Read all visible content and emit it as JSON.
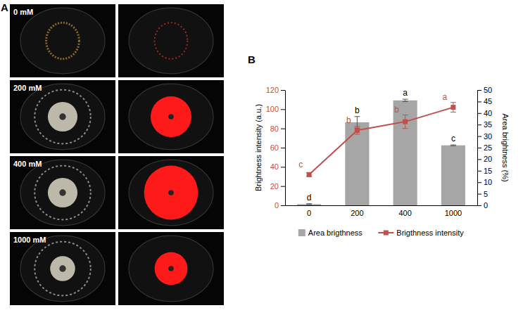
{
  "figure": {
    "panel_a": {
      "letter": "A",
      "labels": [
        "0 mM",
        "200 mM",
        "400 mM",
        "1000 mM"
      ]
    },
    "panel_b": {
      "letter": "B"
    }
  },
  "chart_data": {
    "type": "bar",
    "categories": [
      "0",
      "200",
      "400",
      "1000"
    ],
    "ylabel": "Brightness intensity (a.u.)",
    "y2label": "Area brightness (%)",
    "ylim": [
      0,
      120
    ],
    "yticks": [
      0,
      20,
      40,
      60,
      80,
      100,
      120
    ],
    "y2lim": [
      0,
      50
    ],
    "y2ticks": [
      0,
      5,
      10,
      15,
      20,
      25,
      30,
      35,
      40,
      45,
      50
    ],
    "legend": "bottom",
    "series": [
      {
        "name": "Area brigthness",
        "type": "bar",
        "axis": "y2",
        "color": "#a6a6a6",
        "values": [
          0.5,
          36,
          45.5,
          26
        ],
        "errors": [
          0.2,
          2.5,
          0.5,
          0.2
        ],
        "annotations": [
          "d",
          "b",
          "a",
          "c"
        ]
      },
      {
        "name": "Brigthness intensity",
        "type": "line",
        "color": "#c0504d",
        "marker": "square",
        "values": [
          32,
          78,
          87,
          102
        ],
        "errors": [
          2,
          4,
          7,
          5
        ],
        "annotations": [
          "c",
          "b",
          "b",
          "a"
        ]
      }
    ]
  }
}
